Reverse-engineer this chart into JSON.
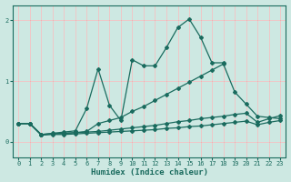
{
  "xlabel": "Humidex (Indice chaleur)",
  "xlim": [
    -0.5,
    23.5
  ],
  "ylim": [
    -0.25,
    2.25
  ],
  "yticks": [
    0,
    1,
    2
  ],
  "xticks": [
    0,
    1,
    2,
    3,
    4,
    5,
    6,
    7,
    8,
    9,
    10,
    11,
    12,
    13,
    14,
    15,
    16,
    17,
    18,
    19,
    20,
    21,
    22,
    23
  ],
  "bg_color": "#cde8e2",
  "grid_color": "#ffffff",
  "line_color": "#1a6b5e",
  "lines": [
    {
      "x": [
        0,
        1,
        2,
        3,
        4,
        5,
        6,
        7,
        8,
        9,
        10,
        11,
        12,
        13,
        14,
        15,
        16,
        17,
        18
      ],
      "y": [
        0.3,
        0.3,
        0.12,
        0.14,
        0.16,
        0.18,
        0.55,
        1.2,
        0.6,
        0.35,
        1.35,
        1.25,
        1.25,
        1.55,
        1.88,
        2.02,
        1.72,
        1.3,
        1.3
      ]
    },
    {
      "x": [
        0,
        1,
        2,
        3,
        4,
        5,
        6,
        7,
        8,
        9,
        10,
        11,
        12,
        13,
        14,
        15,
        16,
        17,
        18,
        19,
        20,
        21,
        22,
        23
      ],
      "y": [
        0.3,
        0.3,
        0.12,
        0.13,
        0.14,
        0.15,
        0.17,
        0.3,
        0.35,
        0.4,
        0.5,
        0.58,
        0.68,
        0.78,
        0.88,
        0.98,
        1.08,
        1.18,
        1.28,
        0.82,
        0.62,
        0.42,
        0.4,
        0.38
      ]
    },
    {
      "x": [
        0,
        1,
        2,
        3,
        4,
        5,
        6,
        7,
        8,
        9,
        10,
        11,
        12,
        13,
        14,
        15,
        16,
        17,
        18,
        19,
        20,
        21,
        22,
        23
      ],
      "y": [
        0.3,
        0.3,
        0.12,
        0.13,
        0.14,
        0.15,
        0.16,
        0.17,
        0.19,
        0.21,
        0.23,
        0.25,
        0.27,
        0.3,
        0.33,
        0.35,
        0.38,
        0.4,
        0.42,
        0.45,
        0.47,
        0.32,
        0.38,
        0.43
      ]
    },
    {
      "x": [
        0,
        1,
        2,
        3,
        4,
        5,
        6,
        7,
        8,
        9,
        10,
        11,
        12,
        13,
        14,
        15,
        16,
        17,
        18,
        19,
        20,
        21,
        22,
        23
      ],
      "y": [
        0.3,
        0.3,
        0.11,
        0.12,
        0.12,
        0.13,
        0.14,
        0.15,
        0.16,
        0.17,
        0.18,
        0.19,
        0.2,
        0.22,
        0.23,
        0.25,
        0.26,
        0.28,
        0.3,
        0.32,
        0.34,
        0.28,
        0.32,
        0.35
      ]
    }
  ]
}
